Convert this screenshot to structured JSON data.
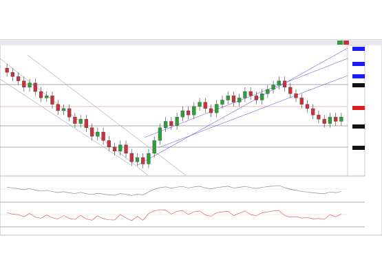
{
  "chart_data": [
    {
      "type": "candlestick",
      "ylim": [
        1.06,
        1.12
      ],
      "color_up": "#2e9e3a",
      "color_down": "#c8323c",
      "open": [
        1.11,
        1.108,
        1.106,
        1.104,
        1.101,
        1.103,
        1.099,
        1.096,
        1.097,
        1.093,
        1.09,
        1.091,
        1.087,
        1.084,
        1.086,
        1.082,
        1.078,
        1.08,
        1.076,
        1.073,
        1.071,
        1.074,
        1.07,
        1.066,
        1.068,
        1.065,
        1.07,
        1.076,
        1.082,
        1.085,
        1.083,
        1.087,
        1.09,
        1.088,
        1.092,
        1.094,
        1.091,
        1.089,
        1.093,
        1.095,
        1.097,
        1.094,
        1.096,
        1.099,
        1.097,
        1.095,
        1.098,
        1.1,
        1.102,
        1.104,
        1.101,
        1.098,
        1.096,
        1.093,
        1.091,
        1.088,
        1.086,
        1.084,
        1.087,
        1.085
      ],
      "high": [
        1.112,
        1.11,
        1.108,
        1.106,
        1.105,
        1.105,
        1.101,
        1.099,
        1.099,
        1.095,
        1.093,
        1.093,
        1.089,
        1.088,
        1.088,
        1.084,
        1.082,
        1.082,
        1.078,
        1.075,
        1.076,
        1.076,
        1.072,
        1.07,
        1.07,
        1.072,
        1.078,
        1.084,
        1.087,
        1.087,
        1.089,
        1.092,
        1.092,
        1.094,
        1.096,
        1.096,
        1.093,
        1.095,
        1.097,
        1.099,
        1.099,
        1.098,
        1.101,
        1.101,
        1.099,
        1.1,
        1.102,
        1.104,
        1.106,
        1.106,
        1.103,
        1.1,
        1.098,
        1.095,
        1.093,
        1.09,
        1.088,
        1.089,
        1.089,
        1.089
      ],
      "low": [
        1.106,
        1.104,
        1.102,
        1.099,
        1.099,
        1.097,
        1.094,
        1.094,
        1.091,
        1.088,
        1.088,
        1.085,
        1.082,
        1.082,
        1.08,
        1.076,
        1.076,
        1.074,
        1.071,
        1.069,
        1.069,
        1.068,
        1.064,
        1.064,
        1.063,
        1.063,
        1.068,
        1.074,
        1.08,
        1.081,
        1.081,
        1.085,
        1.086,
        1.086,
        1.09,
        1.089,
        1.087,
        1.087,
        1.091,
        1.093,
        1.092,
        1.092,
        1.094,
        1.095,
        1.093,
        1.093,
        1.096,
        1.098,
        1.1,
        1.099,
        1.096,
        1.094,
        1.091,
        1.089,
        1.086,
        1.084,
        1.082,
        1.082,
        1.083,
        1.083
      ],
      "close": [
        1.108,
        1.106,
        1.104,
        1.101,
        1.103,
        1.099,
        1.096,
        1.097,
        1.093,
        1.09,
        1.091,
        1.087,
        1.084,
        1.086,
        1.082,
        1.078,
        1.08,
        1.076,
        1.073,
        1.071,
        1.074,
        1.07,
        1.066,
        1.068,
        1.065,
        1.07,
        1.076,
        1.082,
        1.085,
        1.083,
        1.087,
        1.09,
        1.088,
        1.092,
        1.094,
        1.091,
        1.089,
        1.093,
        1.095,
        1.097,
        1.094,
        1.096,
        1.099,
        1.097,
        1.095,
        1.098,
        1.1,
        1.102,
        1.104,
        1.101,
        1.098,
        1.096,
        1.093,
        1.091,
        1.088,
        1.086,
        1.084,
        1.087,
        1.085,
        1.087
      ]
    },
    {
      "type": "line",
      "color": "#8a8a8a",
      "ylim": [
        0,
        100
      ],
      "values": [
        62,
        58,
        55,
        50,
        56,
        48,
        44,
        47,
        42,
        38,
        41,
        36,
        33,
        38,
        32,
        28,
        34,
        30,
        27,
        25,
        33,
        29,
        24,
        30,
        26,
        40,
        52,
        60,
        63,
        57,
        62,
        65,
        58,
        63,
        66,
        58,
        54,
        60,
        63,
        66,
        58,
        61,
        65,
        60,
        56,
        61,
        64,
        67,
        69,
        60,
        52,
        48,
        42,
        40,
        36,
        34,
        32,
        40,
        37,
        42
      ]
    },
    {
      "type": "line",
      "color": "#e06060",
      "ylim": [
        0,
        100
      ],
      "values": [
        58,
        52,
        49,
        40,
        55,
        38,
        33,
        48,
        35,
        30,
        45,
        32,
        28,
        46,
        30,
        24,
        44,
        31,
        26,
        25,
        50,
        34,
        22,
        42,
        24,
        55,
        66,
        72,
        70,
        52,
        64,
        68,
        50,
        62,
        66,
        48,
        42,
        58,
        62,
        64,
        45,
        56,
        66,
        50,
        44,
        58,
        62,
        66,
        68,
        46,
        38,
        40,
        34,
        36,
        30,
        32,
        28,
        50,
        40,
        52
      ]
    }
  ]
}
